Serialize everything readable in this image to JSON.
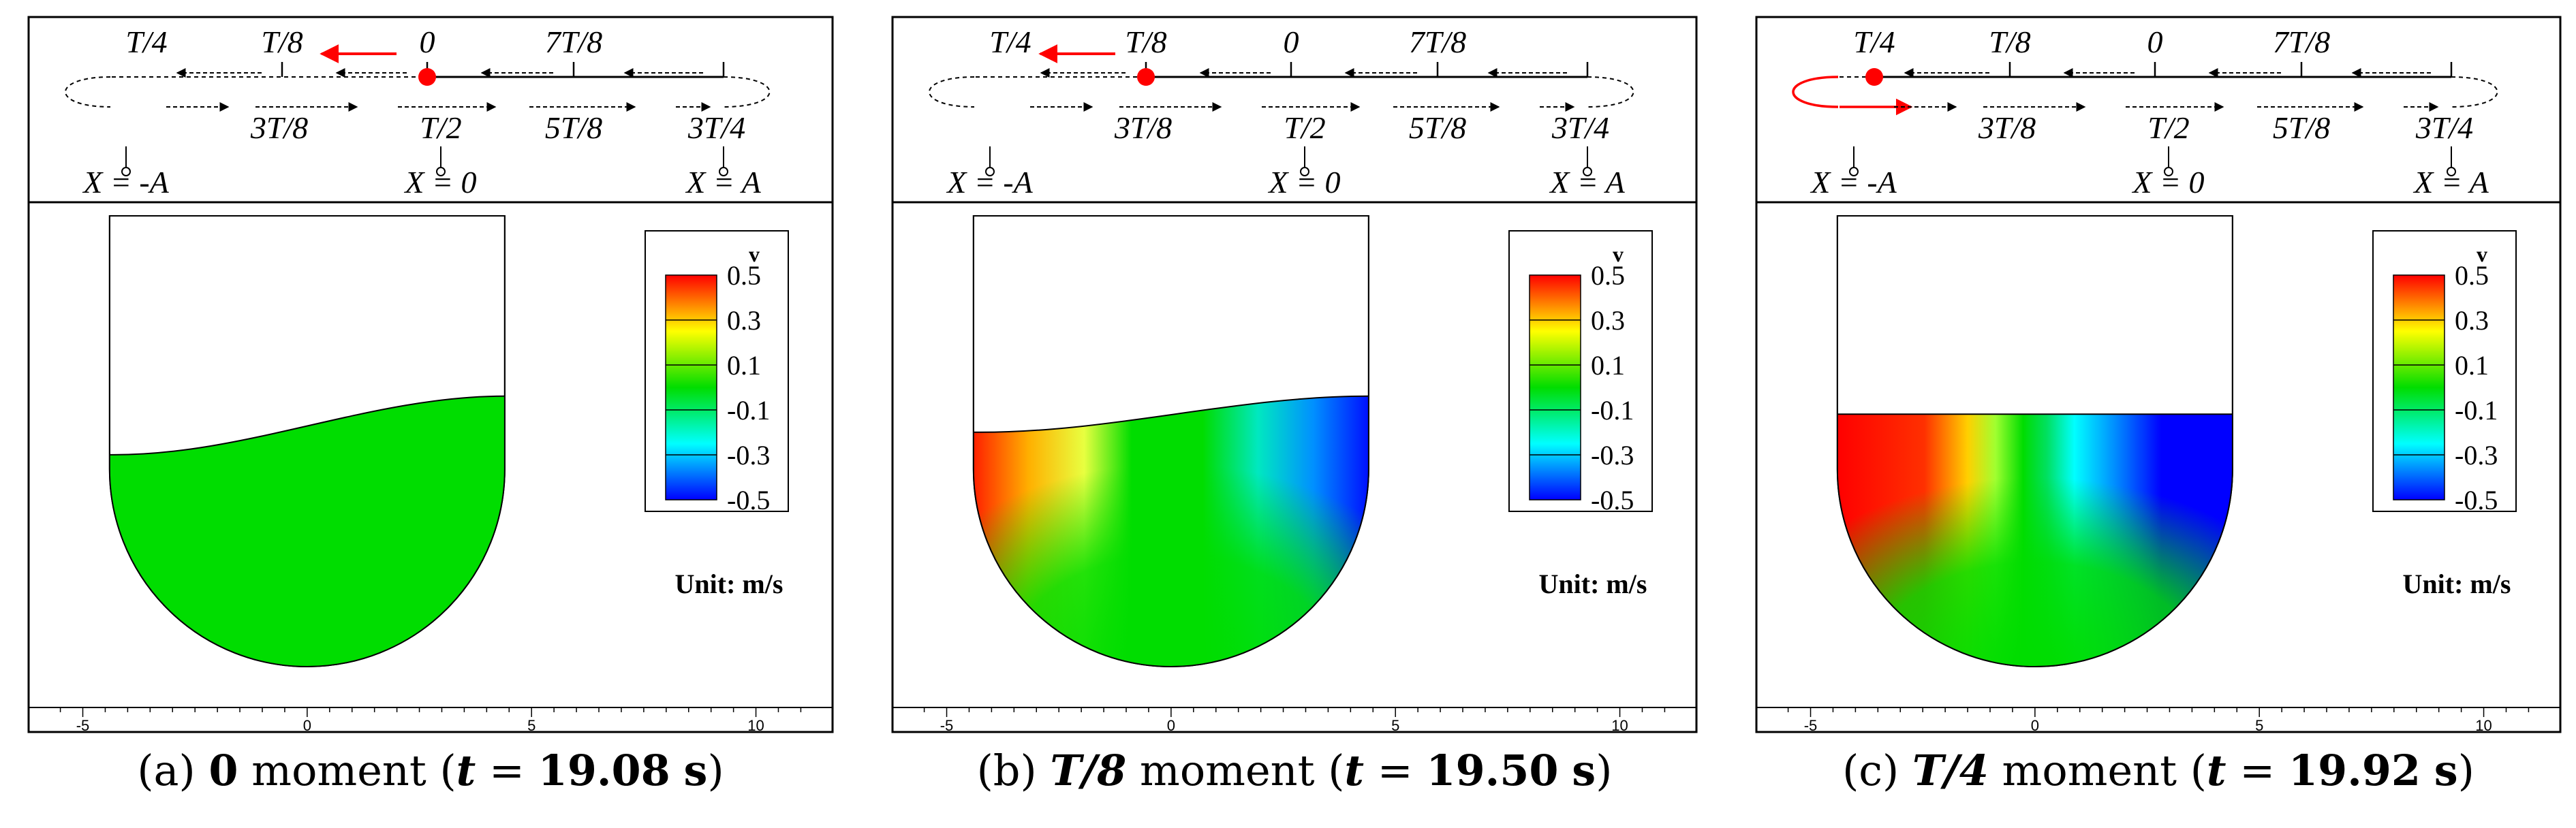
{
  "panels": [
    {
      "id": "a",
      "marker_pos": "0",
      "caption": {
        "label": "(a)",
        "moment": "0",
        "word": "moment",
        "t": "19.08",
        "unit": "s"
      },
      "free_surface": {
        "left_height": 0.47,
        "right_height": 0.6,
        "shape": "wave"
      },
      "velocity_field": "uniform"
    },
    {
      "id": "b",
      "marker_pos": "T/8",
      "caption": {
        "label": "(b)",
        "moment": "T/8",
        "word": "moment",
        "t": "19.50",
        "unit": "s"
      },
      "free_surface": {
        "left_height": 0.52,
        "right_height": 0.6,
        "shape": "wave"
      },
      "velocity_field": "partial"
    },
    {
      "id": "c",
      "marker_pos": "T/4",
      "caption": {
        "label": "(c)",
        "moment": "T/4",
        "word": "moment",
        "t": "19.92",
        "unit": "s"
      },
      "free_surface": {
        "left_height": 0.56,
        "right_height": 0.56,
        "shape": "flat"
      },
      "velocity_field": "full"
    }
  ],
  "schematic": {
    "top_labels": [
      "T/4",
      "T/8",
      "0",
      "7T/8"
    ],
    "bottom_labels": [
      "3T/8",
      "T/2",
      "5T/8",
      "3T/4"
    ],
    "positions": [
      "X = -A",
      "X = 0",
      "X = A"
    ]
  },
  "legend": {
    "title": "v",
    "levels": [
      "0.5",
      "0.3",
      "0.1",
      "-0.1",
      "-0.3",
      "-0.5"
    ],
    "colors": [
      "#ff0000",
      "#ffff00",
      "#00dd00",
      "#00ffff",
      "#0000ff"
    ]
  },
  "unit_label": "Unit: m/s",
  "axis": {
    "ticks": [
      "-5",
      "0",
      "5",
      "10"
    ],
    "tick_values": [
      -5,
      0,
      5,
      10
    ],
    "xlim": [
      -5.6,
      11.1
    ]
  },
  "colors": {
    "marker": "#ff0000",
    "green": "#00dd00",
    "frame": "#000000"
  }
}
